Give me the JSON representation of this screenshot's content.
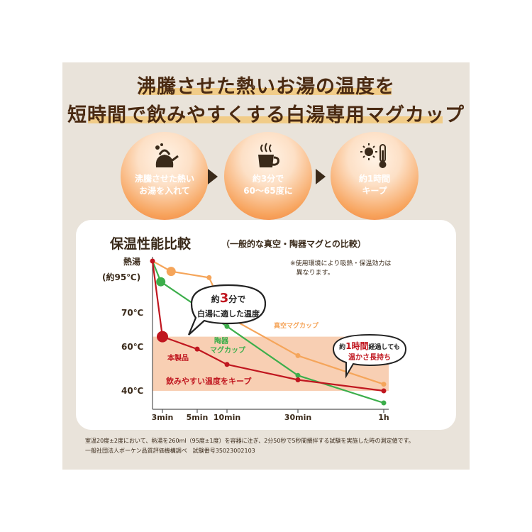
{
  "headline": {
    "line1": "沸騰させた熱いお湯の温度を",
    "line2": "短時間で飲みやすくする白湯専用マグカップ"
  },
  "steps": [
    {
      "icon": "kettle-icon",
      "line1": "沸騰させた熱い",
      "line2": "お湯を入れて"
    },
    {
      "icon": "steaming-cup-icon",
      "line1": "約3分で",
      "line2": "60〜65度に"
    },
    {
      "icon": "sun-thermometer-icon",
      "line1": "約1時間",
      "line2": "キープ"
    }
  ],
  "chart": {
    "title": "保温性能比較",
    "subtitle": "（一般的な真空・陶器マグとの比較）",
    "note_line1": "※使用環境により吸熱・保温効力は",
    "note_line2": "異なります。",
    "bubble_left_prefix": "約",
    "bubble_left_number": "3",
    "bubble_left_suffix": "分で",
    "bubble_left_line2": "白湯に適した温度",
    "bubble_right_prefix": "約",
    "bubble_right_number": "1時間",
    "bubble_right_suffix": "経過しても",
    "bubble_right_line2": "温かさ長持ち",
    "band_label": "飲みやすい温度をキープ"
  },
  "chart_data": {
    "type": "line",
    "y_tick_labels": {
      "top_line1": "熱湯",
      "top_line2": "(約95℃)",
      "t70": "70℃",
      "t60": "60℃",
      "t40": "40℃"
    },
    "x_tick_labels": [
      "3min",
      "5min",
      "10min",
      "30min",
      "1h"
    ],
    "x_minutes": [
      3,
      5,
      10,
      30,
      60
    ],
    "highlight_band": [
      40,
      63
    ],
    "series": [
      {
        "name": "本製品",
        "color": "#c0161f",
        "points": [
          [
            0,
            95
          ],
          [
            3,
            63
          ],
          [
            5,
            59
          ],
          [
            10,
            52
          ],
          [
            30,
            45
          ],
          [
            60,
            40
          ]
        ]
      },
      {
        "name": "陶器マグカップ",
        "color": "#3cae4b",
        "points": [
          [
            0,
            95
          ],
          [
            2.5,
            85
          ],
          [
            10,
            66
          ],
          [
            30,
            47
          ],
          [
            60,
            36
          ]
        ]
      },
      {
        "name": "真空マグカップ",
        "color": "#f5a55a",
        "points": [
          [
            0,
            95
          ],
          [
            3.5,
            90
          ],
          [
            7,
            87
          ],
          [
            10,
            69
          ],
          [
            30,
            56
          ],
          [
            60,
            43
          ]
        ]
      }
    ]
  },
  "footnote": {
    "line1": "室温20度±2度において、熱湯を260ml（95度±1度）を容器に注ぎ、2分50秒で5秒間攪拌する試験を実施した時の測定値です。",
    "line2": "一般社団法人ボーケン品質評価機構調べ　試験番号35023002103"
  },
  "colors": {
    "accent": "#f0773a",
    "product": "#c0161f",
    "ceramic": "#3cae4b",
    "vacuum": "#f5a55a",
    "band": "#f8cfb3"
  }
}
